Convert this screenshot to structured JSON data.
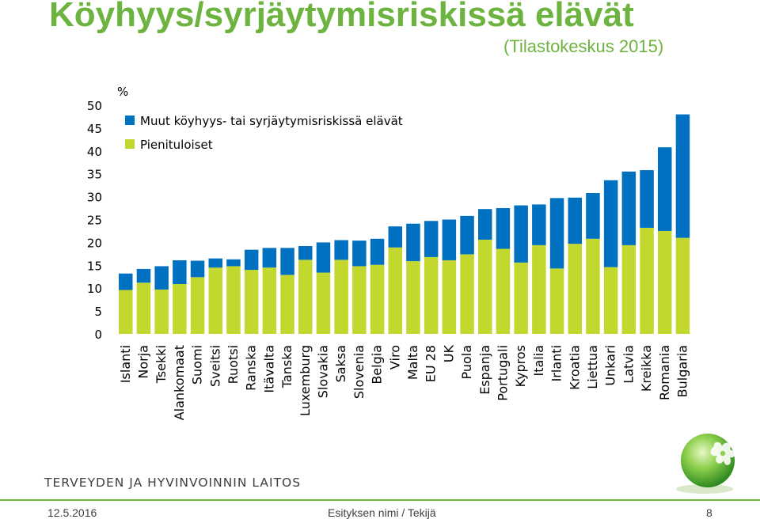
{
  "slide": {
    "title": "Köyhyys/syrjäytymisriskissä elävät",
    "subtitle": "(Tilastokeskus 2015)"
  },
  "footer": {
    "organization": "TERVEYDEN JA HYVINVOINNIN LAITOS",
    "date": "12.5.2016",
    "center_text": "Esityksen nimi / Tekijä",
    "page_number": "8"
  },
  "logo_icon": "thl-green-sphere-logo-icon",
  "colors": {
    "title_green": "#6db33f",
    "series_blue": "#0070c0",
    "series_green": "#c3d82e"
  },
  "chart_data": {
    "type": "bar",
    "stacked": true,
    "ylabel": "%",
    "ylim": [
      0,
      50
    ],
    "yticks": [
      0,
      5,
      10,
      15,
      20,
      25,
      30,
      35,
      40,
      45,
      50
    ],
    "grid": false,
    "legend_position": "top-left",
    "categories": [
      "Islanti",
      "Norja",
      "Tsekki",
      "Alankomaat",
      "Suomi",
      "Sveitsi",
      "Ruotsi",
      "Ranska",
      "Itävalta",
      "Tanska",
      "Luxemburg",
      "Slovakia",
      "Saksa",
      "Slovenia",
      "Belgia",
      "Viro",
      "Malta",
      "EU 28",
      "UK",
      "Puola",
      "Espanja",
      "Portugali",
      "Kypros",
      "Italia",
      "Irlanti",
      "Kroatia",
      "Liettua",
      "Unkari",
      "Latvia",
      "Kreikka",
      "Romania",
      "Bulgaria"
    ],
    "series": [
      {
        "name": "Pienituloiset",
        "color": "#c3d82e",
        "values": [
          9.6,
          11.2,
          9.7,
          10.9,
          12.4,
          14.5,
          14.8,
          14.0,
          14.5,
          12.9,
          16.2,
          13.4,
          16.2,
          14.8,
          15.1,
          18.9,
          15.9,
          16.8,
          16.1,
          17.4,
          20.6,
          18.6,
          15.6,
          19.4,
          14.3,
          19.7,
          20.8,
          14.6,
          19.4,
          23.2,
          22.5,
          21.0
        ]
      },
      {
        "name": "Muut köyhyys- tai syrjäytymisriskissä elävät",
        "color": "#0070c0",
        "values": [
          3.6,
          3.0,
          5.1,
          5.2,
          3.6,
          2.0,
          1.5,
          4.4,
          4.3,
          5.9,
          3.0,
          6.6,
          4.3,
          5.6,
          5.7,
          4.6,
          8.2,
          7.9,
          8.9,
          8.4,
          6.7,
          8.9,
          12.5,
          8.9,
          15.4,
          10.1,
          10.0,
          19.0,
          16.1,
          12.6,
          18.3,
          27.0
        ]
      }
    ]
  }
}
